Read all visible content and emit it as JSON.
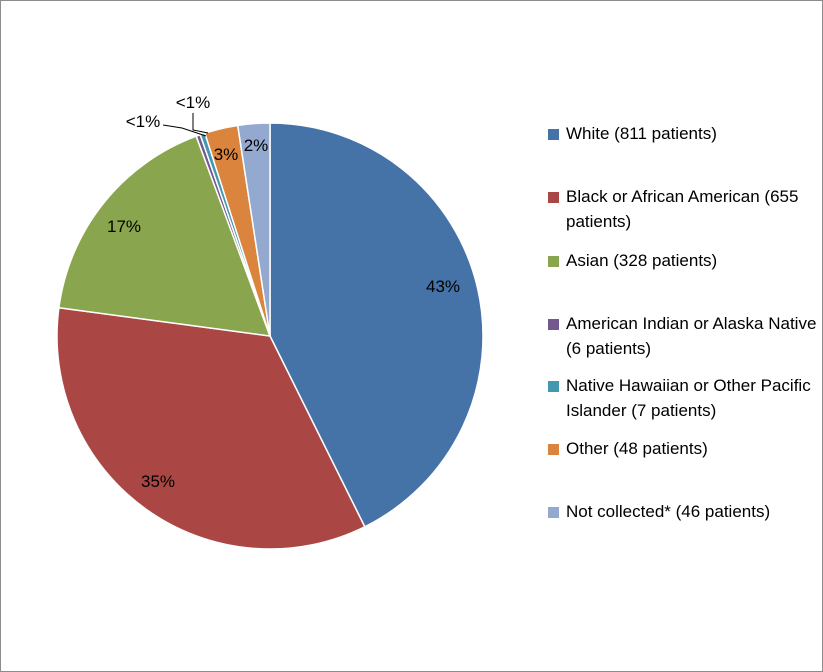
{
  "chart_data": {
    "type": "pie",
    "title": "",
    "slices": [
      {
        "label": "White (811 patients)",
        "value": 811,
        "percent_label": "43%",
        "color": "#4572A7"
      },
      {
        "label": "Black or African American (655 patients)",
        "value": 655,
        "percent_label": "35%",
        "color": "#AA4643"
      },
      {
        "label": "Asian (328 patients)",
        "value": 328,
        "percent_label": "17%",
        "color": "#89A54E"
      },
      {
        "label": "American Indian or Alaska Native (6 patients)",
        "value": 6,
        "percent_label": "<1%",
        "color": "#71588F"
      },
      {
        "label": "Native Hawaiian or Other Pacific Islander (7 patients)",
        "value": 7,
        "percent_label": "<1%",
        "color": "#4198AF"
      },
      {
        "label": "Other (48 patients)",
        "value": 48,
        "percent_label": "3%",
        "color": "#DB843D"
      },
      {
        "label": "Not collected* (46 patients)",
        "value": 46,
        "percent_label": "2%",
        "color": "#93A9CF"
      }
    ],
    "legend_position": "right"
  }
}
